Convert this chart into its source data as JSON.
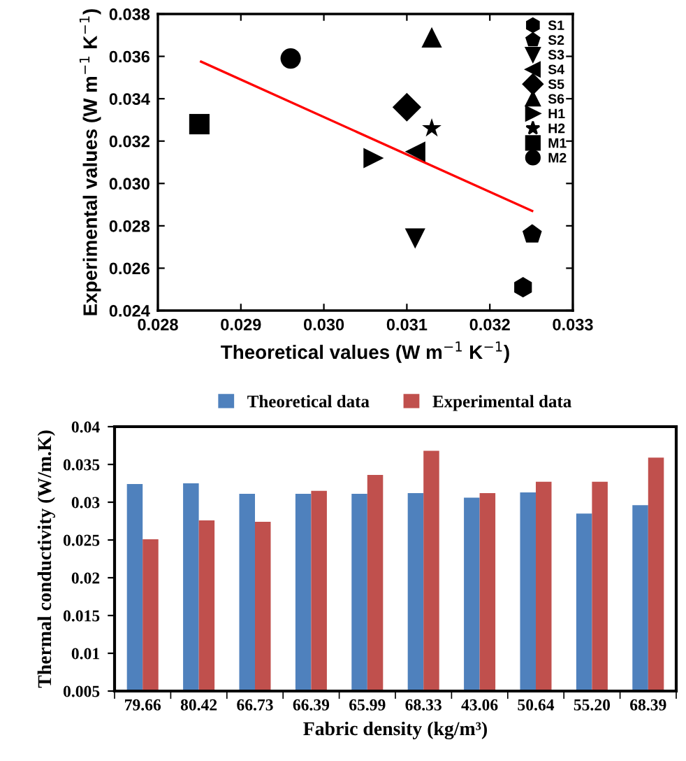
{
  "chart_data": [
    {
      "type": "scatter",
      "xlabel": "Theoretical values (W m$^{−1}$ K$^{−1}$)",
      "ylabel": "Experimental values (W m$^{−1}$ K$^{−1}$)",
      "xlim": [
        0.028,
        0.033
      ],
      "xticks": [
        {
          "value": 0.028,
          "label": "0.028"
        },
        {
          "value": 0.029,
          "label": "0.029"
        },
        {
          "value": 0.03,
          "label": "0.030"
        },
        {
          "value": 0.031,
          "label": "0.031"
        },
        {
          "value": 0.032,
          "label": "0.032"
        },
        {
          "value": 0.033,
          "label": "0.033"
        }
      ],
      "ylim": [
        0.024,
        0.038
      ],
      "yticks": [
        {
          "value": 0.024,
          "label": "0.024"
        },
        {
          "value": 0.026,
          "label": "0.026"
        },
        {
          "value": 0.028,
          "label": "0.028"
        },
        {
          "value": 0.03,
          "label": "0.030"
        },
        {
          "value": 0.032,
          "label": "0.032"
        },
        {
          "value": 0.034,
          "label": "0.034"
        },
        {
          "value": 0.036,
          "label": "0.036"
        },
        {
          "value": 0.038,
          "label": "0.038"
        }
      ],
      "legend": "top right",
      "grid": false,
      "series": [
        {
          "name": "S1",
          "color": "#000000",
          "x": [
            0.0324
          ],
          "values": [
            0.0251
          ]
        },
        {
          "name": "S2",
          "color": "#000000",
          "x": [
            0.03251
          ],
          "values": [
            0.0276
          ]
        },
        {
          "name": "S3",
          "color": "#000000",
          "marker": "triangle-down",
          "x": [
            0.0311
          ],
          "values": [
            0.0274
          ]
        },
        {
          "name": "S4",
          "color": "#000000",
          "marker": "triangle-left",
          "x": [
            0.0311
          ],
          "values": [
            0.0315
          ]
        },
        {
          "name": "S5",
          "color": "#000000",
          "marker": "diamond",
          "x": [
            0.031
          ],
          "values": [
            0.0336
          ]
        },
        {
          "name": "S6",
          "color": "#000000",
          "marker": "triangle",
          "x": [
            0.0313
          ],
          "values": [
            0.0369
          ]
        },
        {
          "name": "H1",
          "color": "#000000",
          "marker": "triangle-right",
          "x": [
            0.0306
          ],
          "values": [
            0.0312
          ]
        },
        {
          "name": "H2",
          "color": "#000000",
          "marker": "star",
          "x": [
            0.0313
          ],
          "values": [
            0.0326
          ]
        },
        {
          "name": "M1",
          "color": "#000000",
          "marker": "square",
          "x": [
            0.0285
          ],
          "values": [
            0.0328
          ]
        },
        {
          "name": "M2",
          "color": "#000000",
          "marker": "circle",
          "x": [
            0.0296
          ],
          "values": [
            0.0359
          ]
        },
        {
          "type": "line",
          "color": "#ff0000",
          "marker": "none",
          "line_style": "solid",
          "x": [
            0.02852,
            0.03251
          ],
          "values": [
            0.03575,
            0.0287
          ]
        }
      ]
    },
    {
      "type": "bar",
      "xlabel": "Fabric density (kg/m³)",
      "ylabel": "Thermal conductivity (W/m.K)",
      "categories": [
        "79.66",
        "80.42",
        "66.73",
        "66.39",
        "65.99",
        "68.33",
        "43.06",
        "50.64",
        "55.20",
        "68.39"
      ],
      "ylim": [
        0.005,
        0.04
      ],
      "yticks": [
        0.005,
        0.01,
        0.015,
        0.02,
        0.025,
        0.03,
        0.035,
        0.04
      ],
      "legend": "top",
      "grid": false,
      "series": [
        {
          "name": "Theoretical data",
          "color": "#4f81bd",
          "values": [
            0.0324,
            0.0325,
            0.0311,
            0.0311,
            0.0311,
            0.0312,
            0.0306,
            0.0313,
            0.0285,
            0.0296
          ]
        },
        {
          "name": "Experimental data",
          "color": "#c0504d",
          "values": [
            0.0251,
            0.0276,
            0.0274,
            0.0315,
            0.0336,
            0.0368,
            0.0312,
            0.0327,
            0.0327,
            0.0359
          ]
        }
      ]
    }
  ]
}
